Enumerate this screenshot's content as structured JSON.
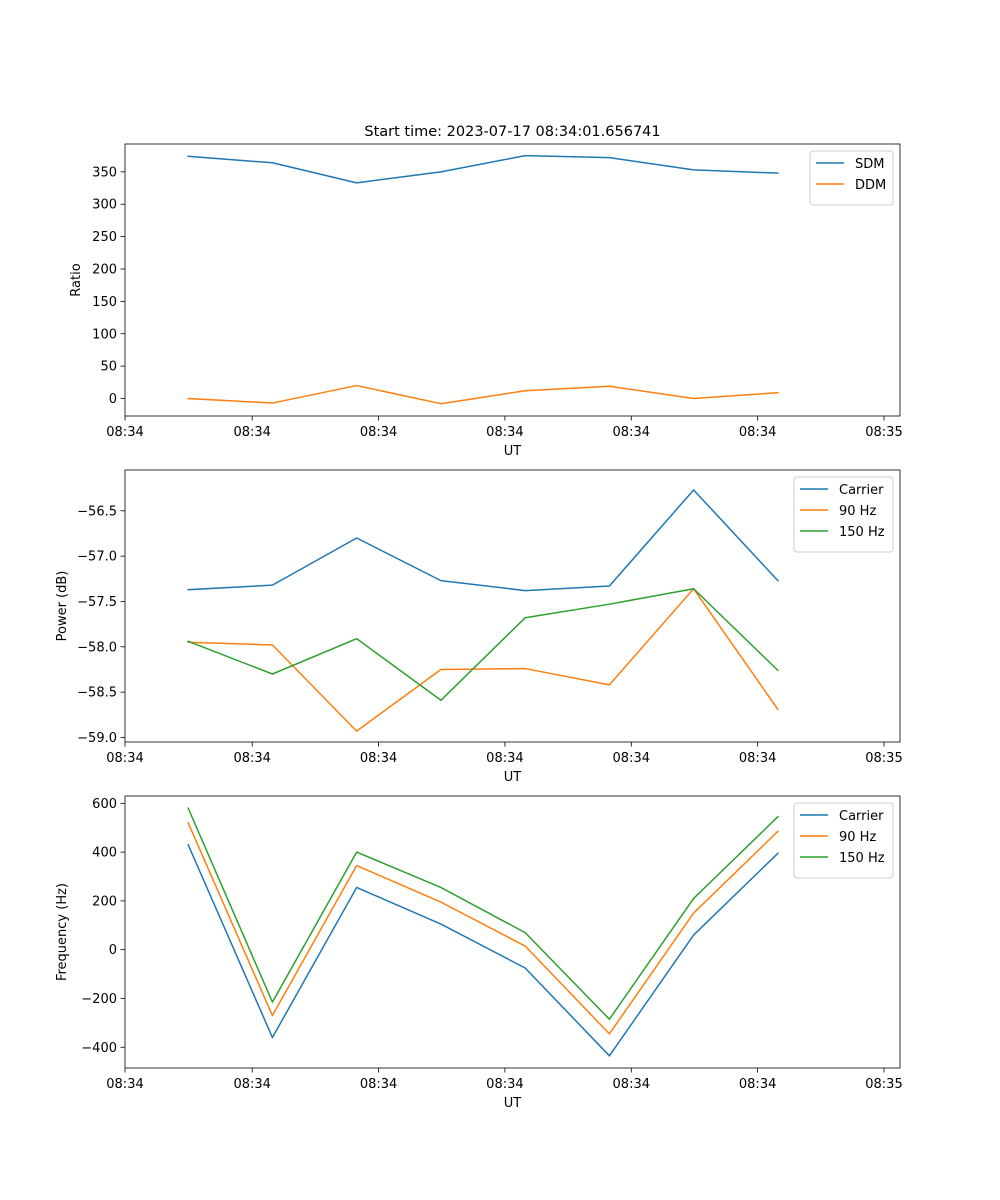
{
  "title": "Start time: 2023-07-17 08:34:01.656741",
  "colors": {
    "blue": "#1f77b4",
    "orange": "#ff7f0e",
    "green": "#2ca02c"
  },
  "chart_data": [
    {
      "type": "line",
      "title": "Start time: 2023-07-17 08:34:01.656741",
      "xlabel": "UT",
      "ylabel": "Ratio",
      "x": [
        0,
        1,
        2,
        3,
        4,
        5,
        6,
        7
      ],
      "xlim": [
        -0.75,
        8.45
      ],
      "xticks": [
        -0.75,
        0.76,
        2.26,
        3.76,
        5.26,
        6.76,
        8.26
      ],
      "xtick_labels": [
        "08:34",
        "08:34",
        "08:34",
        "08:34",
        "08:34",
        "08:34",
        "08:35"
      ],
      "ylim": [
        -27,
        393
      ],
      "yticks": [
        0,
        50,
        100,
        150,
        200,
        250,
        300,
        350
      ],
      "ytick_labels": [
        "0",
        "50",
        "100",
        "150",
        "200",
        "250",
        "300",
        "350"
      ],
      "legend_position": "upper-right",
      "series": [
        {
          "name": "SDM",
          "color": "#1f77b4",
          "values": [
            374,
            364,
            333,
            350,
            375,
            372,
            353,
            348
          ]
        },
        {
          "name": "DDM",
          "color": "#ff7f0e",
          "values": [
            0,
            -7,
            20,
            -8,
            12,
            19,
            0,
            9
          ]
        }
      ]
    },
    {
      "type": "line",
      "title": "",
      "xlabel": "UT",
      "ylabel": "Power (dB)",
      "x": [
        0,
        1,
        2,
        3,
        4,
        5,
        6,
        7
      ],
      "xlim": [
        -0.75,
        8.45
      ],
      "xticks": [
        -0.75,
        0.76,
        2.26,
        3.76,
        5.26,
        6.76,
        8.26
      ],
      "xtick_labels": [
        "08:34",
        "08:34",
        "08:34",
        "08:34",
        "08:34",
        "08:34",
        "08:35"
      ],
      "ylim": [
        -59.05,
        -56.05
      ],
      "yticks": [
        -59.0,
        -58.5,
        -58.0,
        -57.5,
        -57.0,
        -56.5
      ],
      "ytick_labels": [
        "−59.0",
        "−58.5",
        "−58.0",
        "−57.5",
        "−57.0",
        "−56.5"
      ],
      "legend_position": "upper-right",
      "series": [
        {
          "name": "Carrier",
          "color": "#1f77b4",
          "values": [
            -57.37,
            -57.32,
            -56.8,
            -57.27,
            -57.38,
            -57.33,
            -56.27,
            -57.27
          ]
        },
        {
          "name": "90 Hz",
          "color": "#ff7f0e",
          "values": [
            -57.95,
            -57.98,
            -58.93,
            -58.25,
            -58.24,
            -58.42,
            -57.36,
            -58.69
          ]
        },
        {
          "name": "150 Hz",
          "color": "#2ca02c",
          "values": [
            -57.94,
            -58.3,
            -57.91,
            -58.59,
            -57.68,
            -57.53,
            -57.36,
            -58.26
          ]
        }
      ]
    },
    {
      "type": "line",
      "title": "",
      "xlabel": "UT",
      "ylabel": "Frequency (Hz)",
      "x": [
        0,
        1,
        2,
        3,
        4,
        5,
        6,
        7
      ],
      "xlim": [
        -0.75,
        8.45
      ],
      "xticks": [
        -0.75,
        0.76,
        2.26,
        3.76,
        5.26,
        6.76,
        8.26
      ],
      "xtick_labels": [
        "08:34",
        "08:34",
        "08:34",
        "08:34",
        "08:34",
        "08:34",
        "08:35"
      ],
      "ylim": [
        -485,
        630
      ],
      "yticks": [
        -400,
        -200,
        0,
        200,
        400,
        600
      ],
      "ytick_labels": [
        "−400",
        "−200",
        "0",
        "200",
        "400",
        "600"
      ],
      "legend_position": "upper-right",
      "series": [
        {
          "name": "Carrier",
          "color": "#1f77b4",
          "values": [
            430,
            -360,
            255,
            105,
            -75,
            -435,
            60,
            395
          ]
        },
        {
          "name": "90 Hz",
          "color": "#ff7f0e",
          "values": [
            520,
            -270,
            345,
            195,
            15,
            -345,
            150,
            485
          ]
        },
        {
          "name": "150 Hz",
          "color": "#2ca02c",
          "values": [
            580,
            -215,
            400,
            255,
            70,
            -285,
            210,
            545
          ]
        }
      ]
    }
  ]
}
